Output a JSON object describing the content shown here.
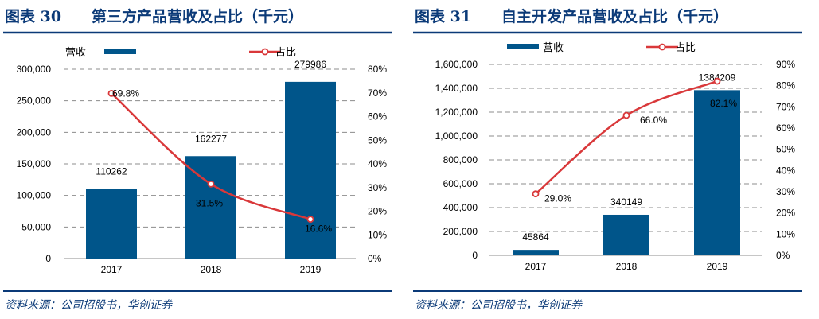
{
  "colors": {
    "bar": "#00558a",
    "line": "#d9383a",
    "rule": "#0b3a78"
  },
  "chart_data": [
    {
      "type": "bar+line",
      "figure_label": "图表 30",
      "title": "第三方产品营收及占比（千元）",
      "source": "资料来源：公司招股书，华创证券",
      "categories": [
        "2017",
        "2018",
        "2019"
      ],
      "series": [
        {
          "name": "营收",
          "type": "bar",
          "axis": "left",
          "values": [
            110262,
            162277,
            279986
          ],
          "labels": [
            "110262",
            "162277",
            "279986"
          ]
        },
        {
          "name": "占比",
          "type": "line",
          "axis": "right",
          "values": [
            69.8,
            31.5,
            16.6
          ],
          "labels": [
            "69.8%",
            "31.5%",
            "16.6%"
          ]
        }
      ],
      "y_left": {
        "range": [
          0,
          300000
        ],
        "ticks": [
          "0",
          "50,000",
          "100,000",
          "150,000",
          "200,000",
          "250,000",
          "300,000"
        ]
      },
      "y_right": {
        "range": [
          0,
          80
        ],
        "ticks": [
          "0%",
          "10%",
          "20%",
          "30%",
          "40%",
          "50%",
          "60%",
          "70%",
          "80%"
        ]
      },
      "grid": true,
      "legend": "top"
    },
    {
      "type": "bar+line",
      "figure_label": "图表 31",
      "title": "自主开发产品营收及占比（千元）",
      "source": "资料来源：公司招股书，华创证券",
      "categories": [
        "2017",
        "2018",
        "2019"
      ],
      "series": [
        {
          "name": "营收",
          "type": "bar",
          "axis": "left",
          "values": [
            45864,
            340149,
            1384209
          ],
          "labels": [
            "45864",
            "340149",
            "1384209"
          ]
        },
        {
          "name": "占比",
          "type": "line",
          "axis": "right",
          "values": [
            29.0,
            66.0,
            82.1
          ],
          "labels": [
            "29.0%",
            "66.0%",
            "82.1%"
          ]
        }
      ],
      "y_left": {
        "range": [
          0,
          1600000
        ],
        "ticks": [
          "0",
          "200,000",
          "400,000",
          "600,000",
          "800,000",
          "1,000,000",
          "1,200,000",
          "1,400,000",
          "1,600,000"
        ]
      },
      "y_right": {
        "range": [
          0,
          90
        ],
        "ticks": [
          "0%",
          "10%",
          "20%",
          "30%",
          "40%",
          "50%",
          "60%",
          "70%",
          "80%",
          "90%"
        ]
      },
      "grid": true,
      "legend": "top"
    }
  ]
}
